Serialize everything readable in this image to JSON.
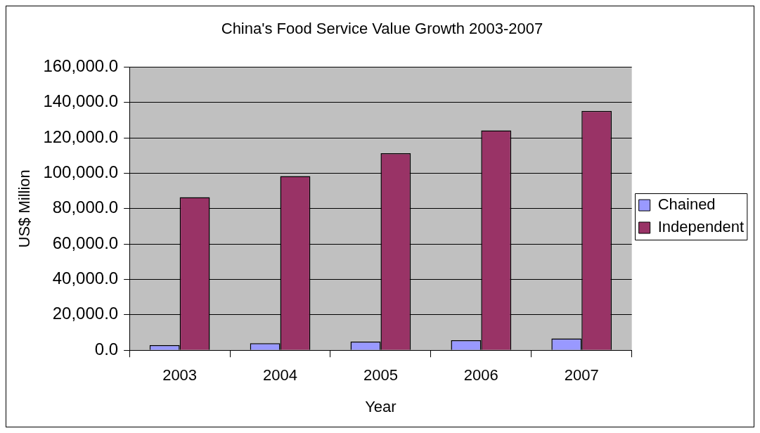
{
  "chart_data": {
    "type": "bar",
    "title": "China's Food Service Value Growth 2003-2007",
    "xlabel": "Year",
    "ylabel": "US$ Million",
    "categories": [
      "2003",
      "2004",
      "2005",
      "2006",
      "2007"
    ],
    "series": [
      {
        "name": "Chained",
        "color": "#9999ff",
        "values": [
          2900,
          4000,
          4800,
          5600,
          6600
        ]
      },
      {
        "name": "Independent",
        "color": "#993366",
        "values": [
          86500,
          98400,
          111300,
          124200,
          135200
        ]
      }
    ],
    "ylim": [
      0,
      160000
    ],
    "yticks": [
      {
        "value": 0,
        "label": "0.0"
      },
      {
        "value": 20000,
        "label": "20,000.0"
      },
      {
        "value": 40000,
        "label": "40,000.0"
      },
      {
        "value": 60000,
        "label": "60,000.0"
      },
      {
        "value": 80000,
        "label": "80,000.0"
      },
      {
        "value": 100000,
        "label": "100,000.0"
      },
      {
        "value": 120000,
        "label": "120,000.0"
      },
      {
        "value": 140000,
        "label": "140,000.0"
      },
      {
        "value": 160000,
        "label": "160,000.0"
      }
    ],
    "grid": "y",
    "legend": "right"
  }
}
